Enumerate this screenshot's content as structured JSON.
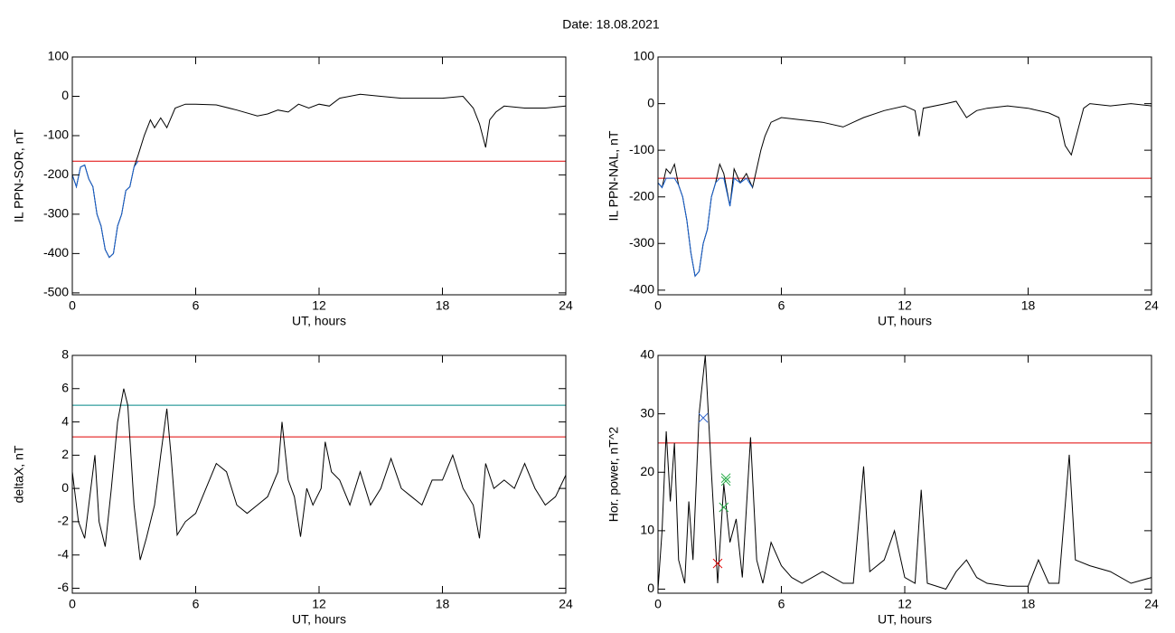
{
  "title": "Date:  18.08.2021",
  "chart_data": [
    {
      "type": "line",
      "ylabel": "IL PPN-SOR, nT",
      "xlabel": "UT, hours",
      "xlim": [
        0,
        24
      ],
      "xticks": [
        0,
        6,
        12,
        18,
        24
      ],
      "ylim": [
        -505,
        100
      ],
      "yticks": [
        100,
        0,
        -100,
        -200,
        -300,
        -400,
        -500
      ],
      "hlines": [
        {
          "value": -165,
          "color": "#e00000"
        }
      ],
      "series": [
        {
          "color": "#000000",
          "style": "line",
          "x": [
            0,
            0.2,
            0.4,
            0.6,
            0.8,
            1.0,
            1.2,
            1.4,
            1.6,
            1.8,
            2.0,
            2.2,
            2.4,
            2.6,
            2.8,
            3.0,
            3.2,
            3.5,
            3.8,
            4.0,
            4.3,
            4.6,
            5.0,
            5.5,
            6,
            7,
            8,
            9,
            9.5,
            10,
            10.5,
            11,
            11.5,
            12,
            12.5,
            13,
            14,
            15,
            16,
            17,
            18,
            19,
            19.5,
            19.8,
            20.1,
            20.3,
            20.6,
            21,
            22,
            23,
            24
          ],
          "values": [
            -200,
            -230,
            -180,
            -175,
            -210,
            -230,
            -300,
            -330,
            -390,
            -410,
            -400,
            -330,
            -300,
            -240,
            -230,
            -180,
            -150,
            -100,
            -60,
            -80,
            -55,
            -80,
            -30,
            -20,
            -20,
            -22,
            -35,
            -50,
            -45,
            -35,
            -40,
            -20,
            -30,
            -20,
            -25,
            -5,
            5,
            0,
            -5,
            -5,
            -5,
            0,
            -30,
            -70,
            -130,
            -60,
            -40,
            -25,
            -30,
            -30,
            -25
          ]
        },
        {
          "color": "#1560d0",
          "style": "line",
          "x": [
            0,
            0.2,
            0.4,
            0.6,
            0.8,
            1.0,
            1.2,
            1.4,
            1.6,
            1.8,
            2.0,
            2.2,
            2.4,
            2.6,
            2.8,
            3.0,
            3.2
          ],
          "values": [
            -200,
            -230,
            -180,
            -175,
            -210,
            -230,
            -300,
            -330,
            -390,
            -410,
            -400,
            -330,
            -300,
            -240,
            -230,
            -180,
            -165
          ]
        }
      ]
    },
    {
      "type": "line",
      "ylabel": "IL PPN-NAL, nT",
      "xlabel": "UT, hours",
      "xlim": [
        0,
        24
      ],
      "xticks": [
        0,
        6,
        12,
        18,
        24
      ],
      "ylim": [
        -410,
        100
      ],
      "yticks": [
        100,
        0,
        -100,
        -200,
        -300,
        -400
      ],
      "hlines": [
        {
          "value": -160,
          "color": "#e00000"
        }
      ],
      "series": [
        {
          "color": "#000000",
          "style": "line",
          "x": [
            0,
            0.2,
            0.4,
            0.6,
            0.8,
            1.0,
            1.2,
            1.4,
            1.6,
            1.8,
            2.0,
            2.2,
            2.4,
            2.6,
            2.8,
            3.0,
            3.2,
            3.5,
            3.7,
            4.0,
            4.3,
            4.6,
            5.0,
            5.2,
            5.5,
            6,
            7,
            8,
            9,
            9.5,
            10,
            11,
            12,
            12.5,
            12.7,
            12.9,
            14,
            14.5,
            15,
            15.5,
            16,
            17,
            18,
            19,
            19.5,
            19.8,
            20.1,
            20.4,
            20.7,
            21,
            22,
            23,
            24
          ],
          "values": [
            -170,
            -180,
            -140,
            -150,
            -130,
            -175,
            -200,
            -250,
            -320,
            -370,
            -360,
            -300,
            -270,
            -200,
            -170,
            -130,
            -150,
            -220,
            -140,
            -170,
            -150,
            -180,
            -100,
            -70,
            -40,
            -30,
            -35,
            -40,
            -50,
            -40,
            -30,
            -15,
            -5,
            -15,
            -70,
            -10,
            0,
            5,
            -30,
            -15,
            -10,
            -5,
            -10,
            -20,
            -30,
            -90,
            -110,
            -60,
            -10,
            0,
            -5,
            0,
            -5
          ]
        },
        {
          "color": "#1560d0",
          "style": "line",
          "x": [
            0,
            0.2,
            0.4,
            0.6,
            0.8,
            1.0,
            1.2,
            1.4,
            1.6,
            1.8,
            2.0,
            2.2,
            2.4,
            2.6,
            2.8,
            3.0,
            3.2,
            3.5,
            3.7,
            4.0,
            4.3,
            4.6
          ],
          "values": [
            -170,
            -180,
            -160,
            -160,
            -160,
            -175,
            -200,
            -250,
            -320,
            -370,
            -360,
            -300,
            -270,
            -200,
            -170,
            -160,
            -160,
            -220,
            -160,
            -170,
            -160,
            -180
          ]
        }
      ]
    },
    {
      "type": "line",
      "ylabel": "deltaX, nT",
      "xlabel": "UT, hours",
      "xlim": [
        0,
        24
      ],
      "xticks": [
        0,
        6,
        12,
        18,
        24
      ],
      "ylim": [
        -6.3,
        8
      ],
      "yticks": [
        8,
        6,
        4,
        2,
        0,
        -2,
        -4,
        -6
      ],
      "hlines": [
        {
          "value": 5,
          "color": "#008888"
        },
        {
          "value": 3.1,
          "color": "#e00000"
        }
      ],
      "series": [
        {
          "color": "#000000",
          "style": "line",
          "x": [
            0,
            0.3,
            0.6,
            0.9,
            1.1,
            1.3,
            1.6,
            1.9,
            2.2,
            2.5,
            2.7,
            3.0,
            3.3,
            3.6,
            4.0,
            4.3,
            4.6,
            4.8,
            5.1,
            5.5,
            6,
            6.5,
            7,
            7.5,
            8,
            8.5,
            9,
            9.5,
            10.0,
            10.2,
            10.5,
            10.8,
            11.1,
            11.4,
            11.7,
            12.1,
            12.3,
            12.6,
            13,
            13.5,
            14,
            14.5,
            15,
            15.5,
            16,
            16.5,
            17,
            17.5,
            18,
            18.5,
            19,
            19.5,
            19.8,
            20.1,
            20.5,
            21,
            21.5,
            22,
            22.5,
            23,
            23.5,
            24
          ],
          "values": [
            1.0,
            -2,
            -3,
            0,
            2,
            -2,
            -3.5,
            0,
            4,
            6,
            5,
            -1,
            -4.3,
            -3,
            -1,
            2,
            4.8,
            2,
            -2.8,
            -2,
            -1.5,
            0,
            1.5,
            1,
            -1,
            -1.5,
            -1,
            -0.5,
            1,
            4,
            0.5,
            -0.5,
            -2.9,
            0,
            -1,
            0,
            2.8,
            1,
            0.5,
            -1,
            1,
            -1,
            0,
            1.8,
            0,
            -0.5,
            -1,
            0.5,
            0.5,
            2,
            0,
            -1,
            -3,
            1.5,
            0,
            0.5,
            0,
            1.5,
            0,
            -1,
            -0.5,
            0.8
          ]
        }
      ]
    },
    {
      "type": "line",
      "ylabel": "Hor. power, nT^2",
      "xlabel": "UT, hours",
      "xlim": [
        0,
        24
      ],
      "xticks": [
        0,
        6,
        12,
        18,
        24
      ],
      "ylim": [
        -0.7,
        40
      ],
      "yticks": [
        40,
        30,
        20,
        10,
        0
      ],
      "hlines": [
        {
          "value": 25,
          "color": "#e00000"
        }
      ],
      "series": [
        {
          "color": "#000000",
          "style": "line",
          "x": [
            0,
            0.2,
            0.4,
            0.6,
            0.8,
            1.0,
            1.3,
            1.5,
            1.7,
            2.0,
            2.3,
            2.6,
            2.9,
            3.2,
            3.5,
            3.8,
            4.1,
            4.5,
            4.8,
            5.1,
            5.5,
            6,
            6.5,
            7,
            8,
            9,
            9.5,
            10.0,
            10.3,
            11,
            11.5,
            12,
            12.5,
            12.8,
            13.1,
            14,
            14.5,
            15,
            15.5,
            16,
            17,
            18,
            18.5,
            19,
            19.5,
            20,
            20.3,
            21,
            22,
            23,
            24
          ],
          "values": [
            0,
            10,
            27,
            15,
            25,
            5,
            1,
            15,
            5,
            30,
            40,
            20,
            1,
            18,
            8,
            12,
            2,
            26,
            5,
            1,
            8,
            4,
            2,
            1,
            3,
            1,
            1,
            21,
            3,
            5,
            10,
            2,
            1,
            17,
            1,
            0,
            3,
            5,
            2,
            1,
            0.5,
            0.5,
            5,
            1,
            1,
            23,
            5,
            4,
            3,
            1,
            2
          ]
        },
        {
          "color": "#3366cc",
          "style": "marker",
          "x": [
            2.2
          ],
          "values": [
            29.3
          ]
        },
        {
          "color": "#22aa44",
          "style": "marker",
          "x": [
            3.3,
            3.3,
            3.2
          ],
          "values": [
            19,
            18.5,
            14
          ]
        },
        {
          "color": "#e00000",
          "style": "marker",
          "x": [
            2.9
          ],
          "values": [
            4.4
          ]
        }
      ]
    }
  ]
}
